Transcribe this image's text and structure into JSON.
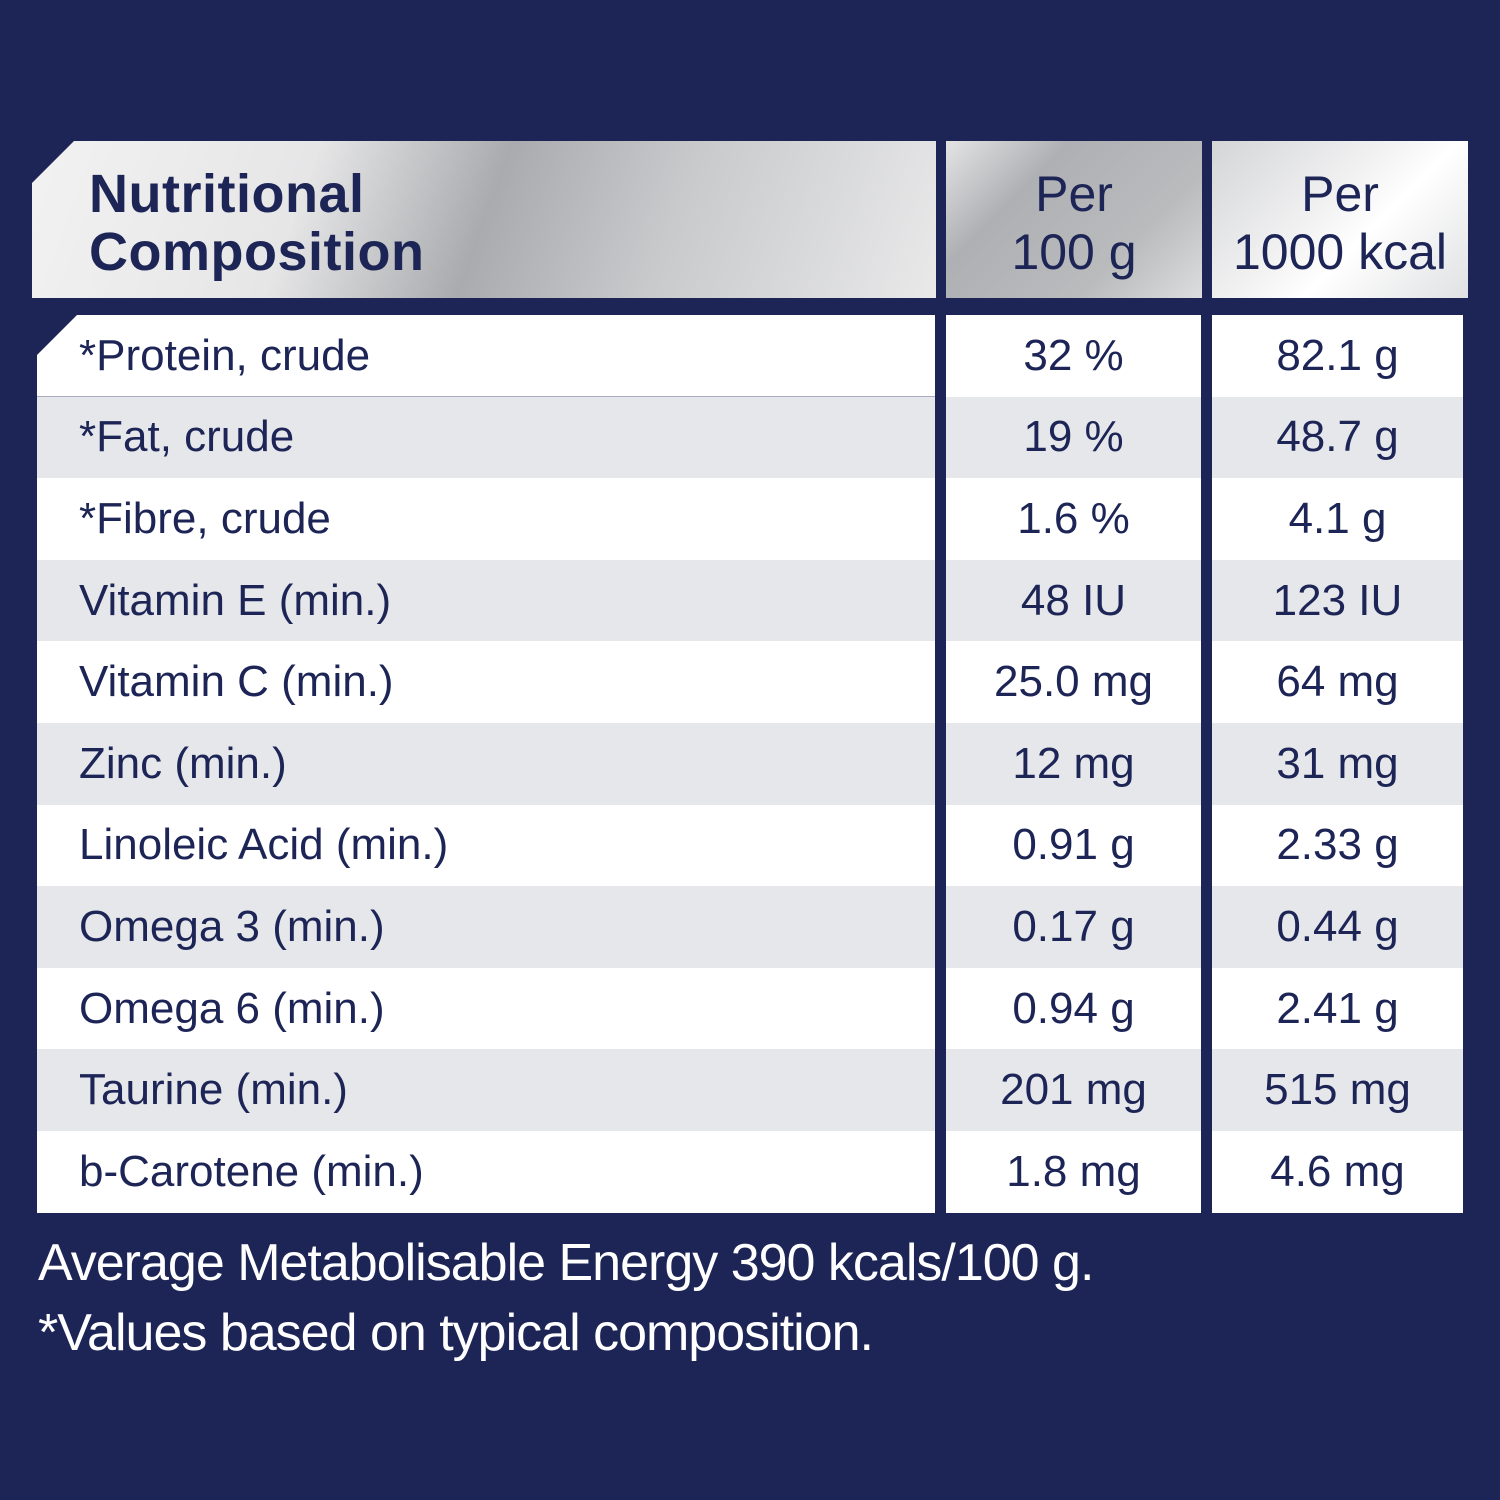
{
  "header": {
    "title_line1": "Nutritional",
    "title_line2": "Composition",
    "col2_line1": "Per",
    "col2_line2": "100 g",
    "col3_line1": "Per",
    "col3_line2": "1000 kcal"
  },
  "rows": [
    {
      "name": "*Protein, crude",
      "per100g": "32 %",
      "per1000kcal": "82.1 g"
    },
    {
      "name": "*Fat, crude",
      "per100g": "19 %",
      "per1000kcal": "48.7 g"
    },
    {
      "name": "*Fibre, crude",
      "per100g": "1.6 %",
      "per1000kcal": "4.1 g"
    },
    {
      "name": "Vitamin E (min.)",
      "per100g": "48 IU",
      "per1000kcal": "123 IU"
    },
    {
      "name": "Vitamin C (min.)",
      "per100g": "25.0 mg",
      "per1000kcal": "64 mg"
    },
    {
      "name": "Zinc (min.)",
      "per100g": "12 mg",
      "per1000kcal": "31 mg"
    },
    {
      "name": "Linoleic Acid (min.)",
      "per100g": "0.91 g",
      "per1000kcal": "2.33 g"
    },
    {
      "name": "Omega 3 (min.)",
      "per100g": "0.17 g",
      "per1000kcal": "0.44 g"
    },
    {
      "name": "Omega 6 (min.)",
      "per100g": "0.94 g",
      "per1000kcal": "2.41 g"
    },
    {
      "name": "Taurine (min.)",
      "per100g": "201 mg",
      "per1000kcal": "515 mg"
    },
    {
      "name": "b-Carotene (min.)",
      "per100g": "1.8 mg",
      "per1000kcal": "4.6 mg"
    }
  ],
  "footer": {
    "line1": "Average Metabolisable Energy 390 kcals/100 g.",
    "line2": "*Values based on typical composition."
  },
  "colors": {
    "background": "#1d2556",
    "row_alt": "#e6e7eb",
    "text": "#1d2556"
  }
}
